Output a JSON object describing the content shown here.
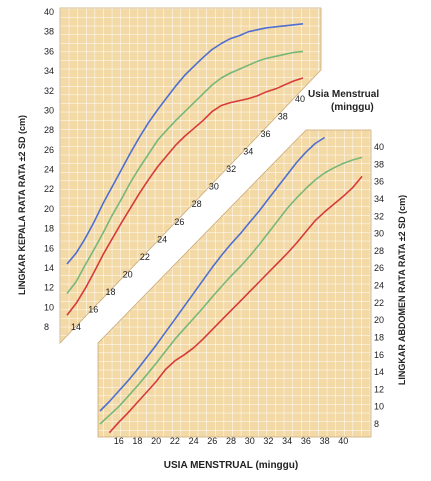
{
  "chart_data": [
    {
      "type": "line",
      "xlabel_band": "Usia Menstrual (minggu)",
      "ylabel": "LINGKAR KEPALA RATA RATA ±2 SD (cm)",
      "x_ticks": [
        14,
        16,
        18,
        20,
        22,
        24,
        26,
        28,
        30,
        32,
        34,
        36,
        38,
        40
      ],
      "y_ticks": [
        8,
        10,
        12,
        14,
        16,
        18,
        20,
        22,
        24,
        26,
        28,
        30,
        32,
        34,
        36,
        38,
        40
      ],
      "ylim": [
        8,
        40
      ],
      "x": [
        14,
        15,
        16,
        17,
        18,
        19,
        20,
        21,
        22,
        23,
        24,
        25,
        26,
        27,
        28,
        29,
        30,
        31,
        32,
        33,
        34,
        35,
        36,
        37,
        38,
        39,
        40
      ],
      "series": [
        {
          "color": "#d63a3a",
          "values": [
            9.2,
            10.4,
            11.9,
            13.6,
            15.4,
            17.0,
            18.6,
            20.1,
            21.6,
            23.0,
            24.3,
            25.4,
            26.5,
            27.4,
            28.2,
            29.0,
            29.9,
            30.5,
            30.8,
            31.0,
            31.2,
            31.5,
            31.9,
            32.2,
            32.6,
            33.0,
            33.3
          ]
        },
        {
          "color": "#78b77a",
          "values": [
            11.4,
            12.6,
            14.3,
            15.9,
            17.6,
            19.4,
            21.0,
            22.7,
            24.2,
            25.6,
            27.0,
            28.0,
            29.0,
            29.9,
            30.8,
            31.7,
            32.6,
            33.3,
            33.8,
            34.2,
            34.6,
            35.0,
            35.3,
            35.5,
            35.7,
            35.9,
            36.0
          ]
        },
        {
          "color": "#4f6fd0",
          "values": [
            14.4,
            15.5,
            17.0,
            18.7,
            20.6,
            22.3,
            24.0,
            25.7,
            27.3,
            28.8,
            30.1,
            31.3,
            32.5,
            33.6,
            34.5,
            35.4,
            36.2,
            36.8,
            37.3,
            37.6,
            38.0,
            38.2,
            38.4,
            38.5,
            38.6,
            38.7,
            38.8
          ]
        }
      ]
    },
    {
      "type": "line",
      "xlabel": "USIA MENSTRUAL (minggu)",
      "ylabel": "LINGKAR ABDOMEN RATA RATA ±2 SD (cm)",
      "x_ticks": [
        16,
        18,
        20,
        22,
        24,
        26,
        28,
        30,
        32,
        34,
        36,
        38,
        40
      ],
      "y_ticks": [
        8,
        10,
        12,
        14,
        16,
        18,
        20,
        22,
        24,
        26,
        28,
        30,
        32,
        34,
        36,
        38,
        40
      ],
      "ylim": [
        8,
        40
      ],
      "x": [
        14,
        15,
        16,
        17,
        18,
        19,
        20,
        21,
        22,
        23,
        24,
        25,
        26,
        27,
        28,
        29,
        30,
        31,
        32,
        33,
        34,
        35,
        36,
        37,
        38,
        39,
        40,
        41,
        42
      ],
      "series": [
        {
          "color": "#d63a3a",
          "values": [
            null,
            7.0,
            8.2,
            9.3,
            10.5,
            11.7,
            12.9,
            14.3,
            15.3,
            16.0,
            16.8,
            17.8,
            18.9,
            20.0,
            21.1,
            22.2,
            23.3,
            24.4,
            25.5,
            26.6,
            27.7,
            28.9,
            30.2,
            31.5,
            32.5,
            33.4,
            34.3,
            35.3,
            36.6
          ]
        },
        {
          "color": "#78b77a",
          "values": [
            8.0,
            9.0,
            10.0,
            11.2,
            12.4,
            13.7,
            15.0,
            16.4,
            17.8,
            19.0,
            20.2,
            21.4,
            22.7,
            23.9,
            25.1,
            26.2,
            27.4,
            28.7,
            30.1,
            31.5,
            32.9,
            34.1,
            35.2,
            36.2,
            37.0,
            37.6,
            38.1,
            38.5,
            38.8
          ]
        },
        {
          "color": "#4f6fd0",
          "values": [
            9.5,
            10.6,
            11.8,
            13.0,
            14.3,
            15.7,
            17.1,
            18.6,
            20.1,
            21.6,
            23.1,
            24.6,
            26.1,
            27.5,
            28.8,
            30.0,
            31.3,
            32.6,
            34.0,
            35.4,
            36.8,
            38.2,
            39.4,
            40.4,
            41.1,
            null,
            null,
            null,
            null
          ]
        }
      ]
    }
  ]
}
